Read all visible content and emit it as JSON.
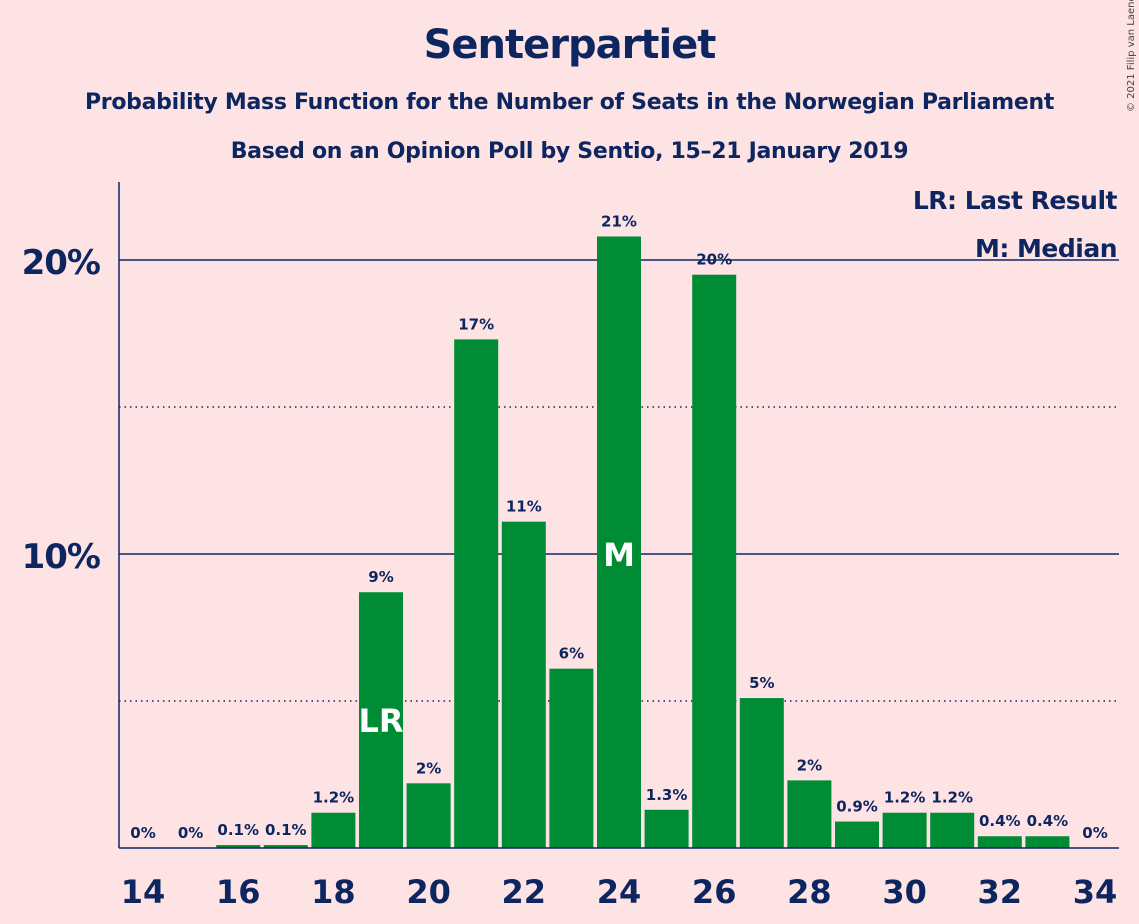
{
  "chart_data": {
    "type": "bar",
    "title": "Senterpartiet",
    "subtitle": "Probability Mass Function for the Number of Seats in the Norwegian Parliament",
    "subtitle2": "Based on an Opinion Poll by Sentio, 15–21 January 2019",
    "copyright": "© 2021 Filip van Laenen",
    "x": [
      14,
      15,
      16,
      17,
      18,
      19,
      20,
      21,
      22,
      23,
      24,
      25,
      26,
      27,
      28,
      29,
      30,
      31,
      32,
      33,
      34
    ],
    "values": [
      0,
      0,
      0.1,
      0.1,
      1.2,
      8.7,
      2.2,
      17.3,
      11.1,
      6.1,
      20.8,
      1.3,
      19.5,
      5.1,
      2.3,
      0.9,
      1.2,
      1.2,
      0.4,
      0.4,
      0
    ],
    "data_labels": [
      "0%",
      "0%",
      "0.1%",
      "0.1%",
      "1.2%",
      "9%",
      "2%",
      "17%",
      "11%",
      "6%",
      "21%",
      "1.3%",
      "20%",
      "5%",
      "2%",
      "0.9%",
      "1.2%",
      "1.2%",
      "0.4%",
      "0.4%",
      "0%"
    ],
    "x_ticks": [
      14,
      16,
      18,
      20,
      22,
      24,
      26,
      28,
      30,
      32,
      34
    ],
    "y_ticks": [
      {
        "value": 10,
        "label": "10%"
      },
      {
        "value": 20,
        "label": "20%"
      }
    ],
    "y_minor_gridlines": [
      5,
      15
    ],
    "ylim": [
      0,
      22.5
    ],
    "last_result_seat": 19,
    "median_seat": 24,
    "last_result_marker": "LR",
    "median_marker": "M",
    "legend": [
      "LR: Last Result",
      "M: Median"
    ],
    "legend_position": "top-right",
    "bar_color": "#008C35",
    "text_color": "#0E2660",
    "background_color": "#FDE3E4"
  }
}
